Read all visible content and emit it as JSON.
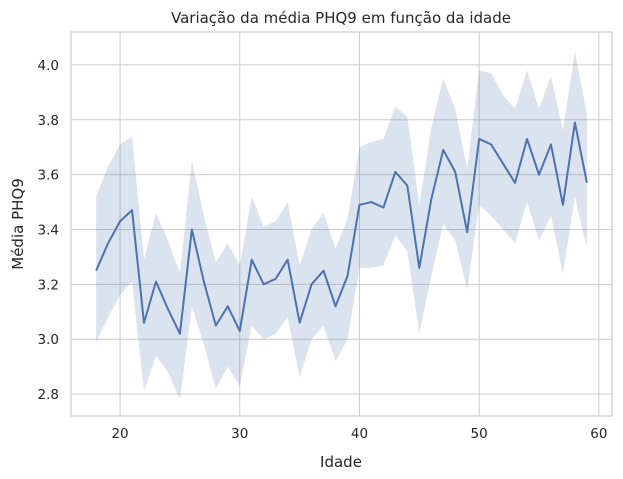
{
  "chart_data": {
    "type": "line",
    "title": "Variação da média PHQ9 em função da idade",
    "xlabel": "Idade",
    "ylabel": "Média PHQ9",
    "xlim": [
      15.9,
      61.1
    ],
    "ylim": [
      2.72,
      4.12
    ],
    "xticks": [
      20,
      30,
      40,
      50,
      60
    ],
    "yticks": [
      2.8,
      3.0,
      3.2,
      3.4,
      3.6,
      3.8,
      4.0
    ],
    "ytick_labels": [
      "2.8",
      "3.0",
      "3.2",
      "3.4",
      "3.6",
      "3.8",
      "4.0"
    ],
    "grid": true,
    "line_color": "#4c72b0",
    "series": [
      {
        "x": [
          18,
          19,
          20,
          21,
          22,
          23,
          24,
          25,
          26,
          27,
          28,
          29,
          30,
          31,
          32,
          33,
          34,
          35,
          36,
          37,
          38,
          39,
          40,
          41,
          42,
          43,
          44,
          45,
          46,
          47,
          48,
          49,
          50,
          51,
          52,
          53,
          54,
          55,
          56,
          57,
          58,
          59
        ],
        "y": [
          3.25,
          3.35,
          3.43,
          3.47,
          3.06,
          3.21,
          3.11,
          3.02,
          3.4,
          3.21,
          3.05,
          3.12,
          3.03,
          3.29,
          3.2,
          3.22,
          3.29,
          3.06,
          3.2,
          3.25,
          3.12,
          3.23,
          3.49,
          3.5,
          3.48,
          3.61,
          3.56,
          3.26,
          3.51,
          3.69,
          3.61,
          3.39,
          3.73,
          3.71,
          3.64,
          3.57,
          3.73,
          3.6,
          3.71,
          3.49,
          3.79,
          3.57
        ],
        "lower": [
          2.99,
          3.08,
          3.16,
          3.21,
          2.81,
          2.94,
          2.88,
          2.78,
          3.12,
          2.98,
          2.82,
          2.9,
          2.83,
          3.05,
          3.0,
          3.02,
          3.08,
          2.86,
          3.0,
          3.05,
          2.92,
          3.0,
          3.26,
          3.26,
          3.27,
          3.38,
          3.32,
          3.02,
          3.23,
          3.42,
          3.36,
          3.18,
          3.49,
          3.45,
          3.4,
          3.35,
          3.5,
          3.36,
          3.45,
          3.24,
          3.52,
          3.33
        ],
        "upper": [
          3.52,
          3.63,
          3.71,
          3.74,
          3.29,
          3.46,
          3.36,
          3.24,
          3.65,
          3.45,
          3.28,
          3.35,
          3.27,
          3.52,
          3.41,
          3.43,
          3.5,
          3.27,
          3.4,
          3.46,
          3.33,
          3.44,
          3.7,
          3.72,
          3.73,
          3.85,
          3.81,
          3.49,
          3.77,
          3.95,
          3.84,
          3.62,
          3.98,
          3.97,
          3.89,
          3.84,
          3.98,
          3.84,
          3.96,
          3.76,
          4.05,
          3.82
        ]
      }
    ]
  }
}
